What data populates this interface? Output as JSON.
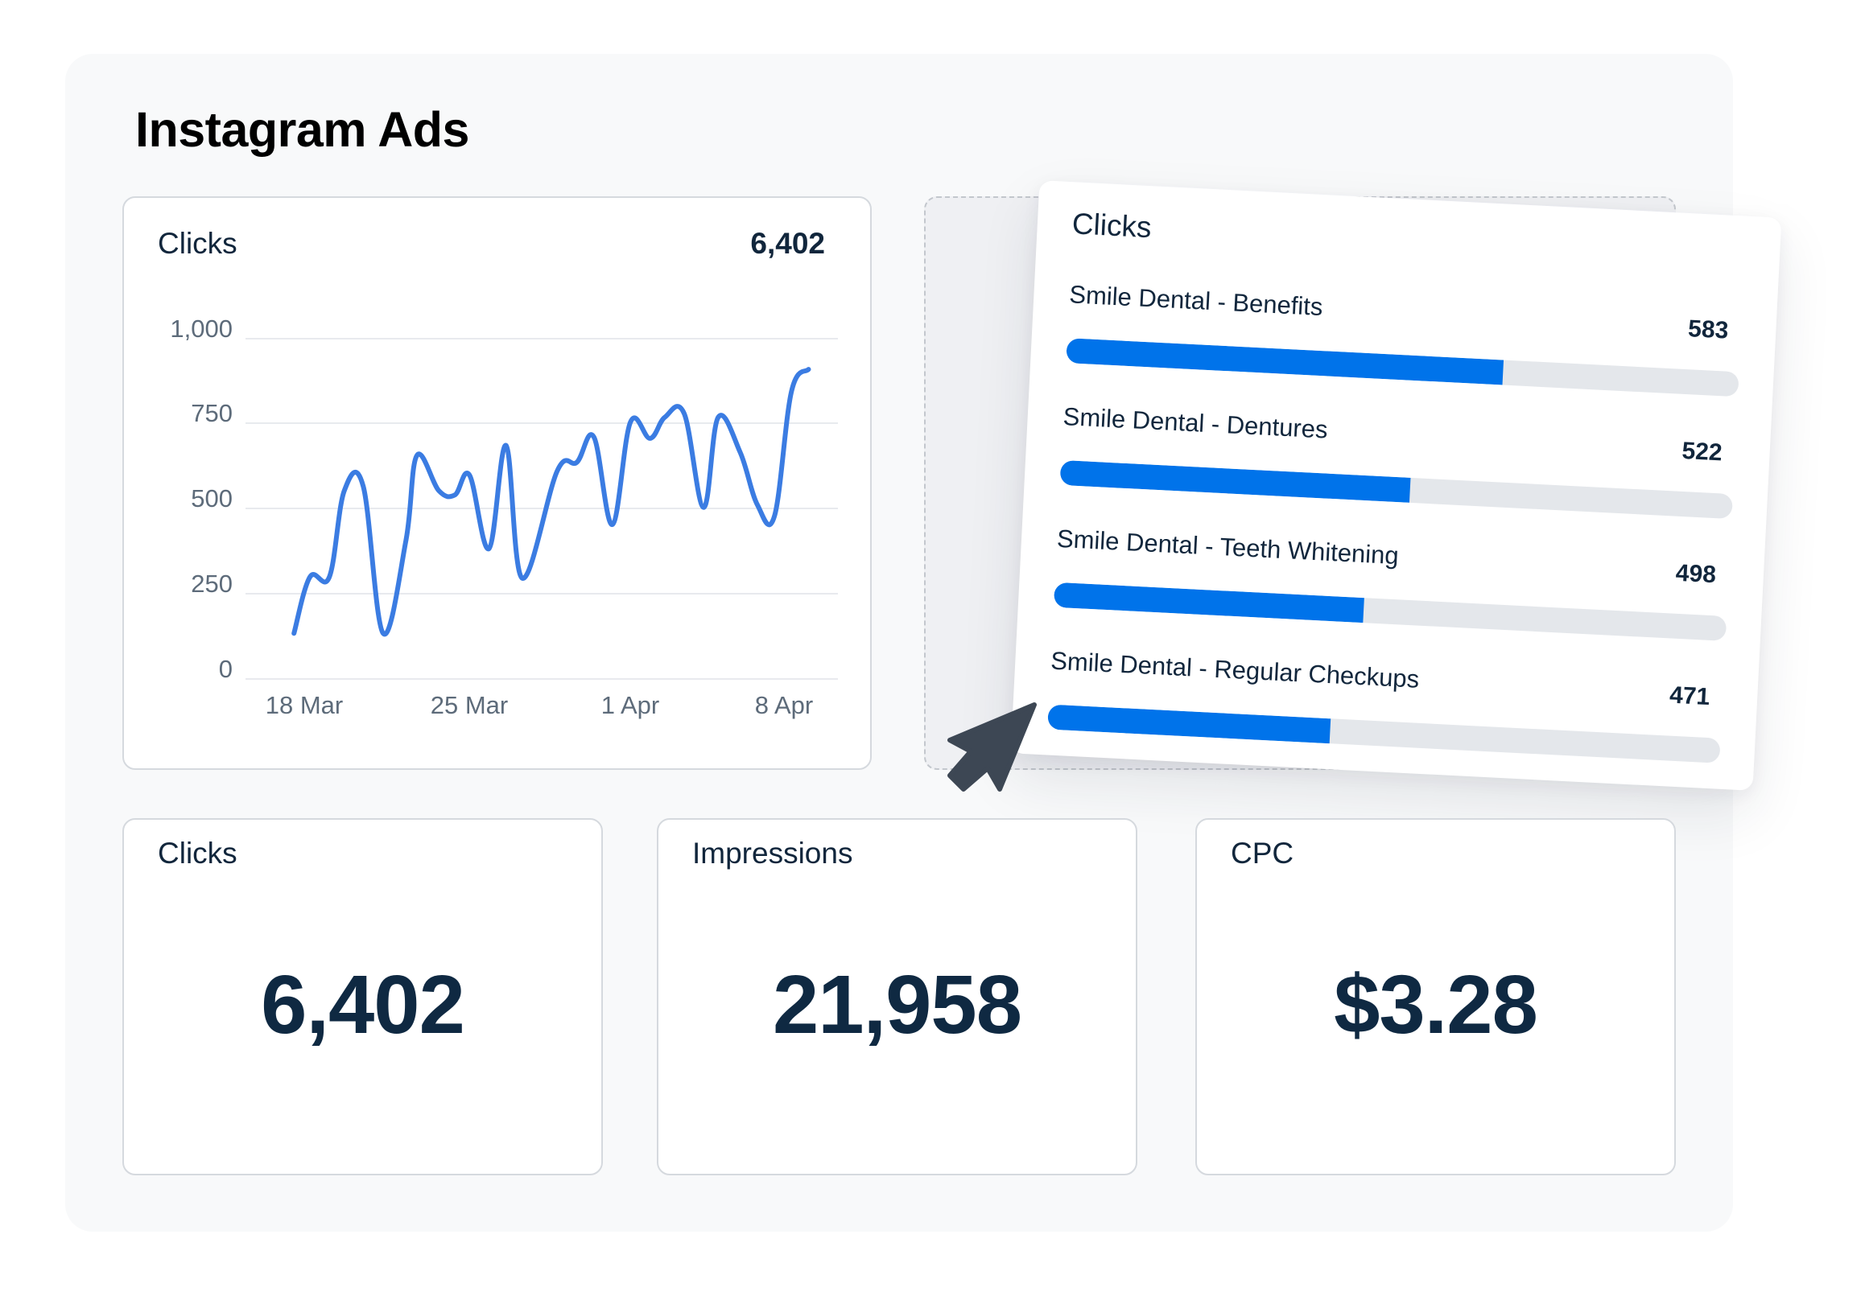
{
  "page": {
    "title": "Instagram Ads"
  },
  "line_widget": {
    "title": "Clicks",
    "total": "6,402",
    "y_ticks": [
      "1,000",
      "750",
      "500",
      "250",
      "0"
    ],
    "x_ticks": [
      "18 Mar",
      "25 Mar",
      "1 Apr",
      "8 Apr"
    ]
  },
  "bar_widget": {
    "title": "Clicks",
    "rows": [
      {
        "label": "Smile Dental - Benefits",
        "value": "583",
        "fill_pct": 65
      },
      {
        "label": "Smile Dental - Dentures",
        "value": "522",
        "fill_pct": 52
      },
      {
        "label": "Smile Dental - Teeth Whitening",
        "value": "498",
        "fill_pct": 46
      },
      {
        "label": "Smile Dental - Regular Checkups",
        "value": "471",
        "fill_pct": 42
      }
    ]
  },
  "stats": [
    {
      "title": "Clicks",
      "value": "6,402"
    },
    {
      "title": "Impressions",
      "value": "21,958"
    },
    {
      "title": "CPC",
      "value": "$3.28"
    }
  ],
  "colors": {
    "line": "#3b7ce2",
    "bar_fill": "#0073ea",
    "bar_track": "#e4e7eb",
    "text_primary": "#11263c",
    "axis_text": "#5d6b7a",
    "gridline": "#e8eaee",
    "cursor": "#3d4754"
  },
  "chart_data": [
    {
      "type": "line",
      "title": "Clicks",
      "total": "6,402",
      "xlabel": "",
      "ylabel": "",
      "ylim": [
        0,
        1000
      ],
      "y_ticks": [
        0,
        250,
        500,
        750,
        1000
      ],
      "x_tick_labels": [
        "18 Mar",
        "25 Mar",
        "1 Apr",
        "8 Apr"
      ],
      "x_tick_positions_days": [
        0,
        7,
        14,
        21
      ],
      "grid": true,
      "legend": "none",
      "series": [
        {
          "name": "Clicks",
          "x_days_from_18_mar": [
            -0.45,
            0.25,
            1.1,
            1.75,
            2.58,
            3.45,
            4.45,
            4.93,
            5.89,
            6.59,
            7.23,
            8.08,
            8.83,
            9.54,
            11.07,
            11.93,
            12.67,
            13.48,
            14.27,
            15.13,
            15.77,
            16.62,
            17.47,
            18.11,
            19.07,
            19.82,
            20.57,
            21.31,
            22.06
          ],
          "values": [
            134,
            300,
            300,
            553,
            566,
            134,
            408,
            657,
            553,
            541,
            599,
            383,
            686,
            296,
            612,
            637,
            711,
            454,
            755,
            707,
            769,
            780,
            504,
            769,
            666,
            512,
            479,
            844,
            910
          ]
        }
      ]
    },
    {
      "type": "bar",
      "orientation": "horizontal",
      "title": "Clicks",
      "categories": [
        "Smile Dental - Benefits",
        "Smile Dental - Dentures",
        "Smile Dental - Teeth Whitening",
        "Smile Dental - Regular Checkups"
      ],
      "values": [
        583,
        522,
        498,
        471
      ]
    }
  ]
}
